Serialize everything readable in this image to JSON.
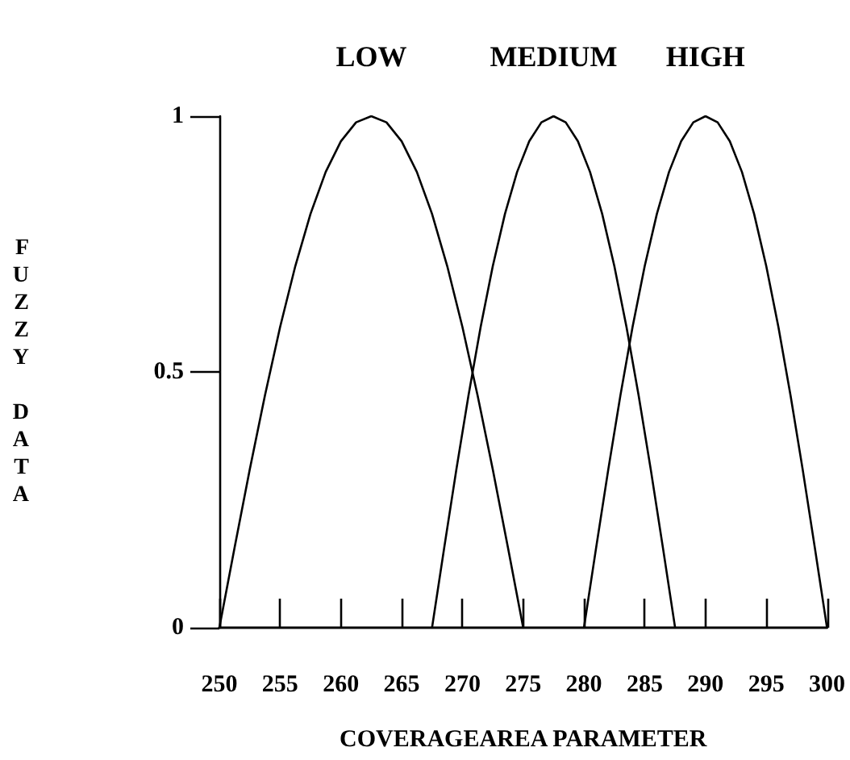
{
  "chart_data": {
    "type": "line",
    "xlabel": "COVERAGEAREA PARAMETER",
    "ylabel": "FUZZY DATA",
    "xlim": [
      250,
      300
    ],
    "xticks": [
      250,
      255,
      260,
      265,
      270,
      275,
      280,
      285,
      290,
      295,
      300
    ],
    "ylim": [
      0,
      1
    ],
    "yticks": [
      0,
      0.5,
      1
    ],
    "grid": false,
    "legend": false,
    "marker": "none",
    "line_style": "solid",
    "series": [
      {
        "name": "LOW",
        "color": "#000000",
        "x": [
          250,
          251.25,
          252.5,
          253.75,
          255,
          256.25,
          257.5,
          258.75,
          260,
          261.25,
          262.5,
          263.75,
          265,
          266.25,
          267.5,
          268.75,
          270,
          271.25,
          272.5,
          273.75,
          275
        ],
        "values": [
          0,
          0.156,
          0.309,
          0.454,
          0.588,
          0.707,
          0.809,
          0.891,
          0.951,
          0.988,
          1,
          0.988,
          0.951,
          0.891,
          0.809,
          0.707,
          0.588,
          0.454,
          0.309,
          0.156,
          0
        ]
      },
      {
        "name": "MEDIUM",
        "color": "#000000",
        "x": [
          267.5,
          268.5,
          269.5,
          270.5,
          271.5,
          272.5,
          273.5,
          274.5,
          275.5,
          276.5,
          277.5,
          278.5,
          279.5,
          280.5,
          281.5,
          282.5,
          283.5,
          284.5,
          285.5,
          286.5,
          287.5
        ],
        "values": [
          0,
          0.156,
          0.309,
          0.454,
          0.588,
          0.707,
          0.809,
          0.891,
          0.951,
          0.988,
          1,
          0.988,
          0.951,
          0.891,
          0.809,
          0.707,
          0.588,
          0.454,
          0.309,
          0.156,
          0
        ]
      },
      {
        "name": "HIGH",
        "color": "#000000",
        "x": [
          280,
          281,
          282,
          283,
          284,
          285,
          286,
          287,
          288,
          289,
          290,
          291,
          292,
          293,
          294,
          295,
          296,
          297,
          298,
          299,
          300
        ],
        "values": [
          0,
          0.156,
          0.309,
          0.454,
          0.588,
          0.707,
          0.809,
          0.891,
          0.951,
          0.988,
          1,
          0.988,
          0.951,
          0.891,
          0.809,
          0.707,
          0.588,
          0.454,
          0.309,
          0.156,
          0
        ]
      }
    ]
  }
}
